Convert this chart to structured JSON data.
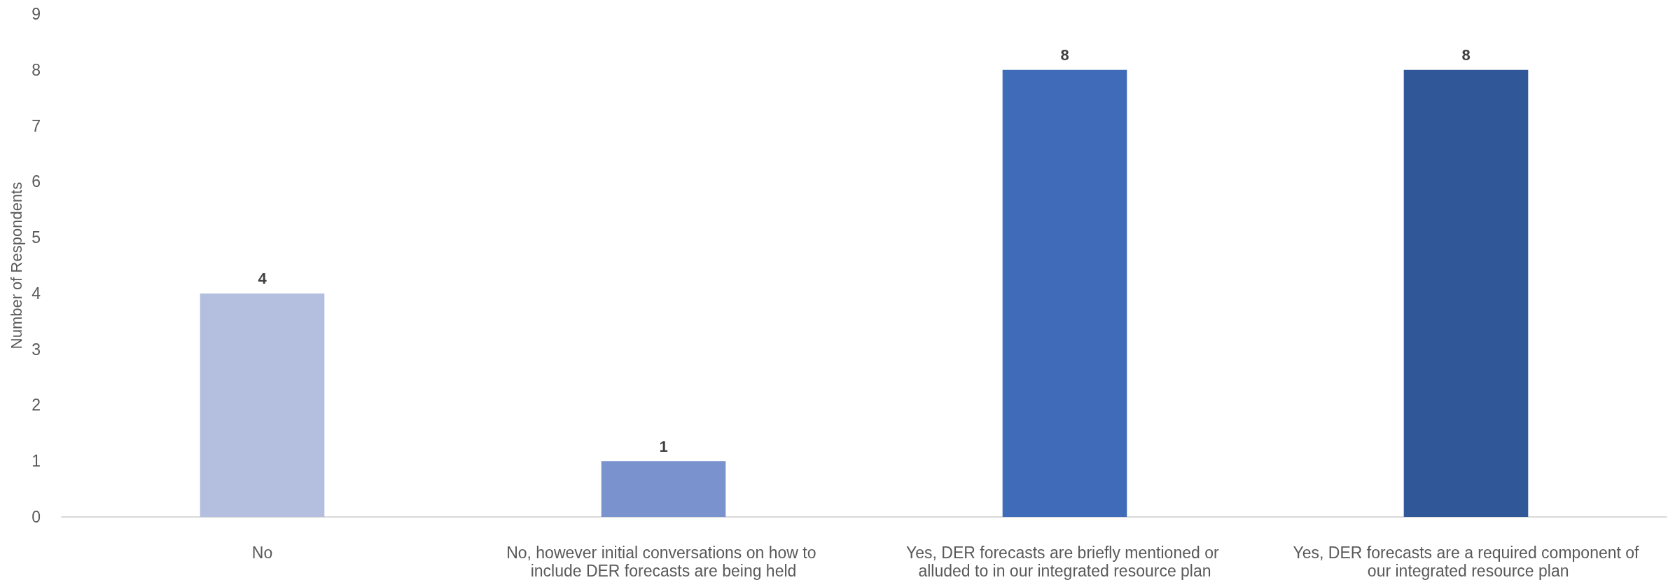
{
  "chart_data": {
    "type": "bar",
    "ylabel": "Number of Respondents",
    "categories": [
      "No",
      "No, however initial conversations on how to include DER forecasts are being held",
      "Yes, DER forecasts are briefly mentioned or alluded to in our integrated resource plan",
      "Yes, DER forecasts are a required component of our integrated resource plan"
    ],
    "values": [
      4,
      1,
      8,
      8
    ],
    "colors": [
      "#b4bfe0",
      "#7a93cf",
      "#3f6bb8",
      "#305899"
    ],
    "ylim": [
      0,
      9
    ],
    "yticks": [
      0,
      1,
      2,
      3,
      4,
      5,
      6,
      7,
      8,
      9
    ],
    "data_labels": true
  }
}
